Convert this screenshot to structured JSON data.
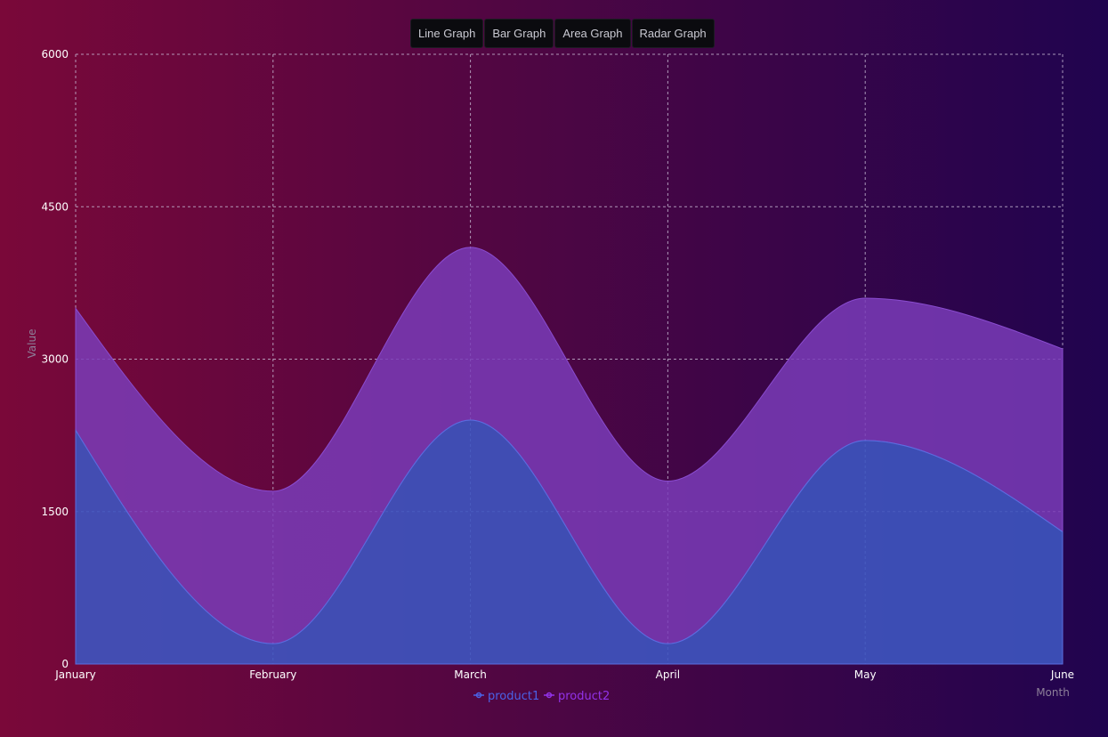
{
  "tabs": [
    "Line Graph",
    "Bar Graph",
    "Area Graph",
    "Radar Graph"
  ],
  "colors": {
    "product1_fill": "#3e55c0",
    "product2_fill": "#7a3cb8",
    "product1_legend": "#4a63e8",
    "product2_legend": "#9333ea",
    "grid": "#c8bcd4"
  },
  "chart_data": {
    "type": "area",
    "stacked": true,
    "categories": [
      "January",
      "February",
      "March",
      "April",
      "May",
      "June"
    ],
    "series": [
      {
        "name": "product1",
        "values": [
          2300,
          200,
          2400,
          200,
          2200,
          1300
        ]
      },
      {
        "name": "product2",
        "values": [
          1200,
          1500,
          1700,
          1600,
          1400,
          1800
        ]
      }
    ],
    "ylim": [
      0,
      6000
    ],
    "yticks": [
      0,
      1500,
      3000,
      4500,
      6000
    ],
    "xlabel": "Month",
    "ylabel": "Value",
    "grid": true,
    "legend": "bottom-center"
  }
}
